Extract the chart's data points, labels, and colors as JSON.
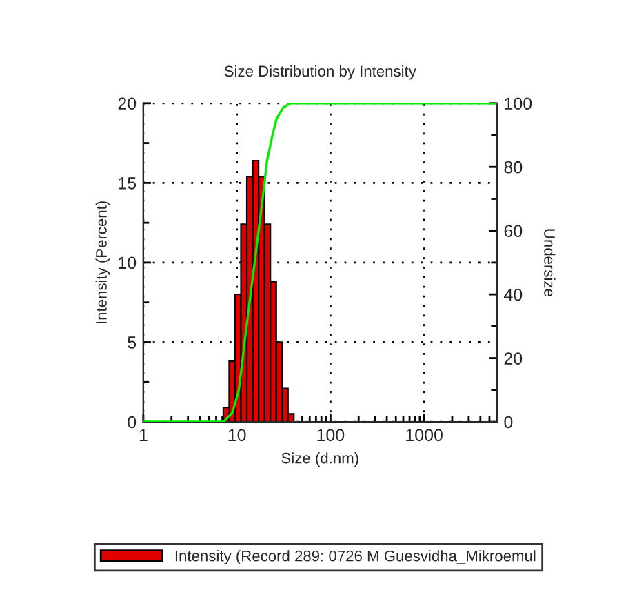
{
  "chart_data": {
    "type": "histogram",
    "title": "Size Distribution by Intensity",
    "xlabel": "Size (d.nm)",
    "ylabel": "Intensity (Percent)",
    "y2label": "Undersize",
    "log": "x",
    "grid": true,
    "legend": "bottom",
    "xlim": [
      1,
      6000
    ],
    "xticks": [
      1,
      10,
      100,
      1000,
      {
        "value": 2,
        "label": null
      },
      {
        "value": 3,
        "label": null
      },
      {
        "value": 4,
        "label": null
      },
      {
        "value": 5,
        "label": null
      },
      {
        "value": 6,
        "label": null
      },
      {
        "value": 7,
        "label": null
      },
      {
        "value": 8,
        "label": null
      },
      {
        "value": 9,
        "label": null
      },
      {
        "value": 20,
        "label": null
      },
      {
        "value": 30,
        "label": null
      },
      {
        "value": 40,
        "label": null
      },
      {
        "value": 50,
        "label": null
      },
      {
        "value": 60,
        "label": null
      },
      {
        "value": 70,
        "label": null
      },
      {
        "value": 80,
        "label": null
      },
      {
        "value": 90,
        "label": null
      },
      {
        "value": 200,
        "label": null
      },
      {
        "value": 300,
        "label": null
      },
      {
        "value": 400,
        "label": null
      },
      {
        "value": 500,
        "label": null
      },
      {
        "value": 600,
        "label": null
      },
      {
        "value": 700,
        "label": null
      },
      {
        "value": 800,
        "label": null
      },
      {
        "value": 900,
        "label": null
      },
      {
        "value": 2000,
        "label": null
      },
      {
        "value": 3000,
        "label": null
      },
      {
        "value": 4000,
        "label": null
      },
      {
        "value": 5000,
        "label": null
      }
    ],
    "ylim": [
      0,
      20
    ],
    "yticks": [
      0,
      5,
      10,
      15,
      20,
      {
        "value": 2.5,
        "label": null
      },
      {
        "value": 7.5,
        "label": null
      },
      {
        "value": 12.5,
        "label": null
      },
      {
        "value": 17.5,
        "label": null
      }
    ],
    "y2lim": [
      0,
      100
    ],
    "y2ticks": [
      0,
      20,
      40,
      60,
      80,
      100,
      {
        "value": 10,
        "label": null
      },
      {
        "value": 30,
        "label": null
      },
      {
        "value": 50,
        "label": null
      },
      {
        "value": 70,
        "label": null
      },
      {
        "value": 90,
        "label": null
      }
    ],
    "bins": [
      7.16,
      8.27,
      9.56,
      11.05,
      12.77,
      14.76,
      17.06,
      19.71,
      22.78,
      26.33,
      30.41,
      35.15,
      40.62
    ],
    "series": [
      {
        "name": "Intensity (Record 289: 0726 M Guesvidha_Mikroemul",
        "color": "#e00000",
        "values": [
          0.9,
          3.8,
          8.0,
          12.4,
          15.4,
          16.4,
          15.4,
          12.4,
          8.8,
          5.0,
          2.1,
          0.5
        ]
      },
      {
        "type": "line",
        "axis": "y2",
        "color": "#00ee00",
        "x": [
          1,
          7.2,
          9,
          10.5,
          12.2,
          14,
          16.4,
          19,
          21,
          24,
          26.5,
          31,
          37,
          42,
          6000
        ],
        "values": [
          0,
          0,
          3,
          10,
          26,
          40,
          56,
          71,
          82,
          90,
          95,
          98.5,
          100,
          100,
          100
        ]
      }
    ]
  }
}
